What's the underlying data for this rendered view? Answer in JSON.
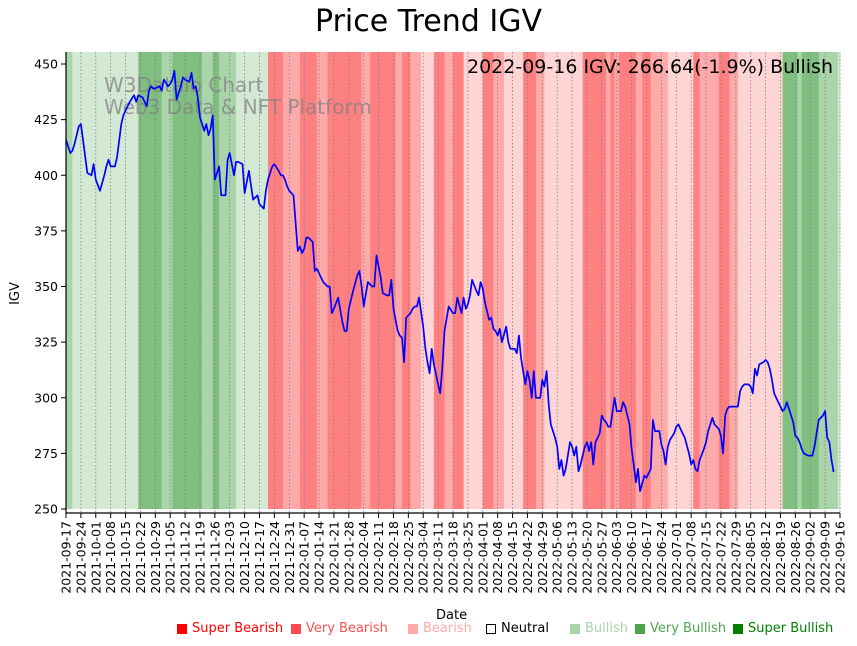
{
  "chart_data": {
    "type": "line",
    "title": "Price Trend IGV",
    "xlabel": "Date",
    "ylabel": "IGV",
    "ylim": [
      248.2,
      455.4
    ],
    "xlim": [
      "2021-09-17",
      "2022-09-16"
    ],
    "grid": "vertical dotted at x ticks",
    "annotation": "2022-09-16 IGV: 266.64(-1.9%) Bullish",
    "watermark": [
      "W3Dataio Chart",
      "Web3 Data & NFT Platform"
    ],
    "yticks": [
      250,
      275,
      300,
      325,
      350,
      375,
      400,
      425,
      450
    ],
    "xticks": [
      "2021-09-17",
      "2021-09-24",
      "2021-10-01",
      "2021-10-08",
      "2021-10-15",
      "2021-10-22",
      "2021-10-29",
      "2021-11-05",
      "2021-11-12",
      "2021-11-19",
      "2021-11-26",
      "2021-12-03",
      "2021-12-10",
      "2021-12-17",
      "2021-12-24",
      "2021-12-31",
      "2022-01-07",
      "2022-01-14",
      "2022-01-21",
      "2022-01-28",
      "2022-02-04",
      "2022-02-11",
      "2022-02-18",
      "2022-02-25",
      "2022-03-04",
      "2022-03-11",
      "2022-03-18",
      "2022-03-25",
      "2022-04-01",
      "2022-04-08",
      "2022-04-15",
      "2022-04-22",
      "2022-04-29",
      "2022-05-06",
      "2022-05-13",
      "2022-05-20",
      "2022-05-27",
      "2022-06-03",
      "2022-06-10",
      "2022-06-17",
      "2022-06-24",
      "2022-07-01",
      "2022-07-08",
      "2022-07-15",
      "2022-07-22",
      "2022-07-29",
      "2022-08-05",
      "2022-08-12",
      "2022-08-19",
      "2022-08-26",
      "2022-09-02",
      "2022-09-09",
      "2022-09-16"
    ],
    "legend": [
      {
        "label": "Super Bearish",
        "color": "#ff0000",
        "text_color": "#ff0000"
      },
      {
        "label": "Very Bearish",
        "color": "#ff4d4d",
        "text_color": "#ff4d4d"
      },
      {
        "label": "Bearish",
        "color": "#ffaaaa",
        "text_color": "#ffaaaa"
      },
      {
        "label": "Neutral",
        "color": "#ffffff",
        "text_color": "#000000",
        "outline": true
      },
      {
        "label": "Bullish",
        "color": "#aad4aa",
        "text_color": "#aad4aa"
      },
      {
        "label": "Very Bullish",
        "color": "#4da64d",
        "text_color": "#4da64d"
      },
      {
        "label": "Super Bullish",
        "color": "#008000",
        "text_color": "#008000"
      }
    ],
    "band_colors": {
      "bull_light": "#d4e9d4",
      "bull": "#aad4aa",
      "bull_very": "#80bf80",
      "bear_light": "#ffd4d4",
      "bear": "#ffaaaa",
      "bear_very": "#ff8080"
    },
    "regime_bands": [
      {
        "start": 0,
        "end": 3,
        "regime": "bull"
      },
      {
        "start": 3,
        "end": 34,
        "regime": "bull_light"
      },
      {
        "start": 34,
        "end": 45,
        "regime": "bull_very"
      },
      {
        "start": 45,
        "end": 50,
        "regime": "bull"
      },
      {
        "start": 50,
        "end": 64,
        "regime": "bull_very"
      },
      {
        "start": 64,
        "end": 69,
        "regime": "bull"
      },
      {
        "start": 69,
        "end": 72,
        "regime": "bull_very"
      },
      {
        "start": 72,
        "end": 80,
        "regime": "bull"
      },
      {
        "start": 80,
        "end": 91,
        "regime": "bull_light"
      },
      {
        "start": 91,
        "end": 95,
        "regime": "bull_light"
      },
      {
        "start": 95,
        "end": 102,
        "regime": "bear_very"
      },
      {
        "start": 102,
        "end": 110,
        "regime": "bear"
      },
      {
        "start": 110,
        "end": 118,
        "regime": "bear_very"
      },
      {
        "start": 118,
        "end": 123,
        "regime": "bear"
      },
      {
        "start": 123,
        "end": 139,
        "regime": "bear_very"
      },
      {
        "start": 139,
        "end": 143,
        "regime": "bear"
      },
      {
        "start": 143,
        "end": 155,
        "regime": "bear_very"
      },
      {
        "start": 155,
        "end": 158,
        "regime": "bear"
      },
      {
        "start": 158,
        "end": 162,
        "regime": "bear_very"
      },
      {
        "start": 162,
        "end": 167,
        "regime": "bear"
      },
      {
        "start": 167,
        "end": 173,
        "regime": "bear_light"
      },
      {
        "start": 173,
        "end": 178,
        "regime": "bear_very"
      },
      {
        "start": 178,
        "end": 182,
        "regime": "bear"
      },
      {
        "start": 182,
        "end": 187,
        "regime": "bear_very"
      },
      {
        "start": 187,
        "end": 196,
        "regime": "bear_light"
      },
      {
        "start": 196,
        "end": 201,
        "regime": "bear_very"
      },
      {
        "start": 201,
        "end": 206,
        "regime": "bear"
      },
      {
        "start": 206,
        "end": 215,
        "regime": "bear_light"
      },
      {
        "start": 215,
        "end": 221,
        "regime": "bear_very"
      },
      {
        "start": 221,
        "end": 225,
        "regime": "bear"
      },
      {
        "start": 225,
        "end": 234,
        "regime": "bear_light"
      },
      {
        "start": 234,
        "end": 243,
        "regime": "bear_light"
      },
      {
        "start": 243,
        "end": 254,
        "regime": "bear_very"
      },
      {
        "start": 254,
        "end": 256,
        "regime": "bear"
      },
      {
        "start": 256,
        "end": 258,
        "regime": "bear_very"
      },
      {
        "start": 258,
        "end": 260,
        "regime": "bear"
      },
      {
        "start": 260,
        "end": 268,
        "regime": "bear_very"
      },
      {
        "start": 268,
        "end": 271,
        "regime": "bear"
      },
      {
        "start": 271,
        "end": 275,
        "regime": "bear_very"
      },
      {
        "start": 275,
        "end": 283,
        "regime": "bear"
      },
      {
        "start": 283,
        "end": 295,
        "regime": "bear_light"
      },
      {
        "start": 295,
        "end": 298,
        "regime": "bear_very"
      },
      {
        "start": 298,
        "end": 307,
        "regime": "bear"
      },
      {
        "start": 307,
        "end": 312,
        "regime": "bear_very"
      },
      {
        "start": 312,
        "end": 316,
        "regime": "bear"
      },
      {
        "start": 316,
        "end": 337,
        "regime": "bear_light"
      },
      {
        "start": 337,
        "end": 344,
        "regime": "bull_very"
      },
      {
        "start": 344,
        "end": 346,
        "regime": "bull"
      },
      {
        "start": 346,
        "end": 354,
        "regime": "bull_very"
      },
      {
        "start": 354,
        "end": 363,
        "regime": "bull"
      },
      {
        "start": 363,
        "end": 364,
        "regime": "bull_light"
      }
    ],
    "series": [
      {
        "name": "IGV",
        "color": "#0000ff",
        "day_offsets": [
          0,
          2,
          3,
          4,
          6,
          7,
          8,
          10,
          12,
          13,
          14,
          16,
          18,
          19,
          20,
          21,
          23,
          24,
          26,
          27,
          28,
          30,
          32,
          33,
          34,
          36,
          38,
          39,
          40,
          41,
          42,
          44,
          45,
          46,
          48,
          49,
          50,
          51,
          52,
          54,
          55,
          56,
          58,
          59,
          60,
          61,
          62,
          63,
          65,
          66,
          67,
          68,
          69,
          70,
          72,
          73,
          74,
          75,
          76,
          77,
          79,
          80,
          81,
          83,
          84,
          86,
          88,
          90,
          91,
          93,
          94,
          95,
          96,
          97,
          98,
          100,
          101,
          102,
          103,
          104,
          105,
          107,
          109,
          110,
          111,
          112,
          113,
          114,
          116,
          117,
          118,
          119,
          121,
          123,
          124,
          125,
          126,
          128,
          130,
          131,
          132,
          133,
          135,
          137,
          138,
          139,
          140,
          142,
          144,
          145,
          146,
          148,
          149,
          151,
          152,
          153,
          154,
          156,
          157,
          158,
          159,
          160,
          162,
          163,
          164,
          165,
          166,
          168,
          169,
          170,
          171,
          172,
          173,
          175,
          176,
          177,
          178,
          180,
          182,
          183,
          184,
          186,
          187,
          188,
          189,
          190,
          191,
          193,
          194,
          195,
          196,
          197,
          199,
          200,
          201,
          202,
          203,
          204,
          205,
          207,
          208,
          209,
          211,
          212,
          213,
          214,
          216,
          217,
          218,
          219,
          220,
          221,
          223,
          224,
          225,
          226,
          227,
          228,
          230,
          231,
          232,
          233,
          234,
          235,
          237,
          238,
          239,
          240,
          241,
          242,
          244,
          245,
          246,
          247,
          248,
          249,
          251,
          252,
          253,
          254,
          255,
          256,
          258,
          259,
          260,
          261,
          262,
          263,
          265,
          266,
          267,
          268,
          269,
          270,
          272,
          273,
          274,
          275,
          276,
          277,
          279,
          280,
          281,
          282,
          283,
          284,
          286,
          287,
          288,
          289,
          290,
          291,
          293,
          294,
          295,
          296,
          297,
          298,
          300,
          301,
          302,
          303,
          304,
          305,
          307,
          308,
          309,
          310,
          311,
          312,
          314,
          315,
          316,
          317,
          318,
          319,
          321,
          322,
          323,
          324,
          325,
          326,
          328,
          329,
          330,
          331,
          332,
          333,
          335,
          336,
          337,
          338,
          339,
          340,
          342,
          343,
          344,
          345,
          346,
          347,
          349,
          350,
          351,
          352,
          353,
          354,
          356,
          357,
          358,
          359,
          360,
          361,
          363,
          364
        ],
        "values": [
          416,
          410,
          411,
          414,
          422,
          423,
          416,
          401,
          400,
          405,
          398,
          393,
          400,
          404,
          407,
          404,
          404,
          408,
          423,
          427,
          429,
          433,
          436,
          433,
          436,
          435,
          431,
          438,
          440,
          439,
          439,
          440,
          438,
          443,
          440,
          441,
          443,
          447,
          434,
          440,
          444,
          443,
          442,
          446,
          439,
          440,
          435,
          426,
          420,
          423,
          418,
          421,
          427,
          398,
          404,
          391,
          391,
          391,
          407,
          410,
          400,
          406,
          406,
          405,
          392,
          402,
          389,
          391,
          387,
          385,
          393,
          398,
          401,
          404,
          405,
          402,
          400,
          400,
          398,
          395,
          393,
          391,
          366,
          368,
          365,
          367,
          372,
          372,
          370,
          357,
          358,
          356,
          352,
          350,
          350,
          338,
          340,
          345,
          334,
          330,
          330,
          340,
          348,
          355,
          357,
          350,
          341,
          352,
          350,
          350,
          364,
          354,
          347,
          346,
          346,
          353,
          340,
          330,
          328,
          327,
          316,
          336,
          338,
          340,
          341,
          341,
          345,
          332,
          322,
          316,
          311,
          322,
          315,
          306,
          302,
          314,
          330,
          341,
          338,
          338,
          345,
          338,
          345,
          340,
          342,
          346,
          353,
          348,
          346,
          352,
          349,
          343,
          335,
          336,
          331,
          330,
          328,
          331,
          325,
          332,
          325,
          322,
          322,
          320,
          328,
          318,
          306,
          312,
          308,
          300,
          312,
          300,
          300,
          308,
          305,
          312,
          297,
          288,
          282,
          278,
          268,
          272,
          265,
          268,
          280,
          278,
          274,
          278,
          267,
          270,
          278,
          280,
          276,
          280,
          270,
          280,
          284,
          292,
          290,
          289,
          287,
          287,
          300,
          294,
          294,
          294,
          298,
          296,
          288,
          277,
          270,
          262,
          268,
          258,
          265,
          264,
          266,
          268,
          290,
          285,
          285,
          279,
          276,
          270,
          278,
          281,
          284,
          287,
          288,
          286,
          284,
          282,
          275,
          270,
          272,
          268,
          267,
          272,
          277,
          280,
          285,
          288,
          291,
          288,
          286,
          283,
          275,
          292,
          295,
          296,
          296,
          296,
          296,
          303,
          305,
          306,
          306,
          305,
          302,
          313,
          310,
          315,
          316,
          317,
          316,
          313,
          308,
          302,
          298,
          296,
          294,
          295,
          298,
          295,
          289,
          283,
          282,
          280,
          277,
          275,
          274,
          274,
          274,
          278,
          284,
          290,
          292,
          294,
          282,
          280,
          272,
          266.64
        ]
      }
    ]
  }
}
